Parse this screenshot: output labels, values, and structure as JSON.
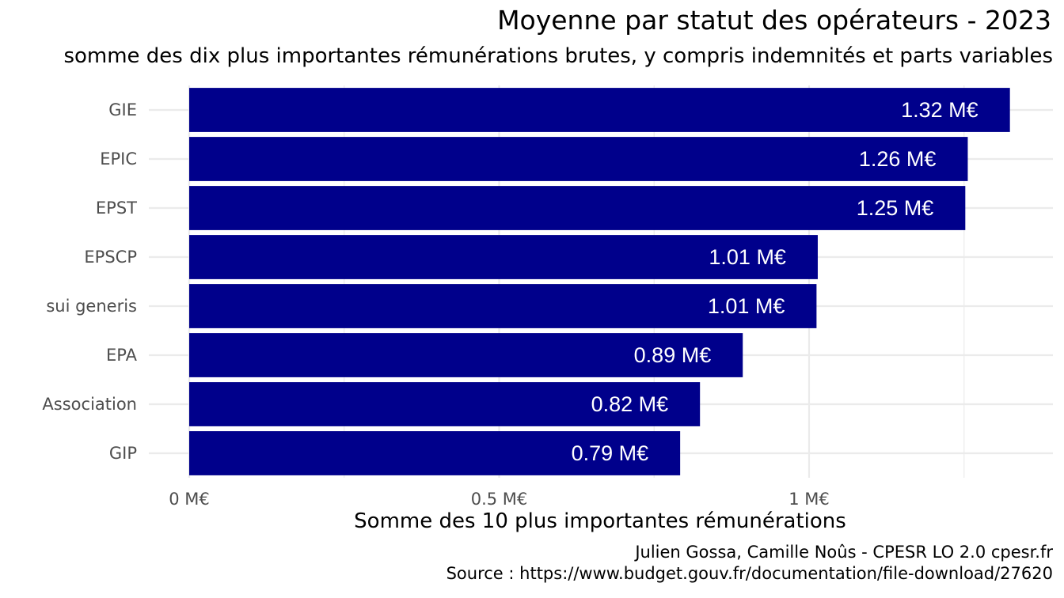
{
  "header": {
    "title": "Moyenne par statut des opérateurs - 2023",
    "subtitle": "somme des dix plus importantes rémunérations brutes, y compris indemnités et parts variables"
  },
  "footer": {
    "caption_line1": "Julien Gossa, Camille Noûs - CPESR LO 2.0 cpesr.fr",
    "caption_line2": "Source : https://www.budget.gouv.fr/documentation/file-download/27620"
  },
  "chart_data": {
    "type": "bar",
    "orientation": "horizontal",
    "title": "Moyenne par statut des opérateurs - 2023",
    "subtitle": "somme des dix plus importantes rémunérations brutes, y compris indemnités et parts variables",
    "xlabel": "Somme des 10 plus importantes rémunérations",
    "ylabel": "",
    "categories": [
      "GIE",
      "EPIC",
      "EPST",
      "EPSCP",
      "sui generis",
      "EPA",
      "Association",
      "GIP"
    ],
    "values": [
      1.324,
      1.256,
      1.252,
      1.014,
      1.012,
      0.893,
      0.824,
      0.792
    ],
    "data_labels": [
      "1.32 M€",
      "1.26 M€",
      "1.25 M€",
      "1.01 M€",
      "1.01 M€",
      "0.89 M€",
      "0.82 M€",
      "0.79 M€"
    ],
    "x_ticks": [
      0,
      0.5,
      1
    ],
    "x_tick_labels": [
      "0 M€",
      "0.5 M€",
      "1 M€"
    ],
    "xlim": [
      0,
      1.39
    ],
    "grid": true,
    "legend": "none",
    "bar_color": "#00008B",
    "grid_color": "#EBEBEB",
    "label_color": "#FFFFFF"
  }
}
